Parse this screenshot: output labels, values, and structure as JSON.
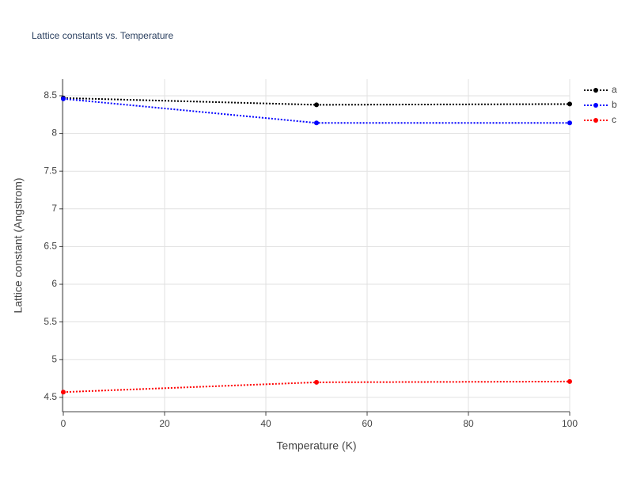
{
  "chart_data": {
    "type": "line",
    "title": "Lattice constants vs. Temperature",
    "x_label": "Temperature (K)",
    "y_label": "Lattice constant (Angstrom)",
    "x": [
      0,
      50,
      100
    ],
    "series": [
      {
        "name": "a",
        "color": "#000000",
        "values": [
          8.47,
          8.38,
          8.39
        ]
      },
      {
        "name": "b",
        "color": "#0000ff",
        "values": [
          8.46,
          8.14,
          8.14
        ]
      },
      {
        "name": "c",
        "color": "#ff0000",
        "values": [
          4.57,
          4.7,
          4.71
        ]
      }
    ],
    "xlim": [
      0,
      100
    ],
    "xticks": [
      0,
      20,
      40,
      60,
      80,
      100
    ],
    "ylim": [
      4.31,
      8.72
    ],
    "yticks": [
      4.5,
      5,
      5.5,
      6,
      6.5,
      7,
      7.5,
      8,
      8.5
    ],
    "grid": true,
    "line_style": "dot",
    "legend": "right"
  }
}
